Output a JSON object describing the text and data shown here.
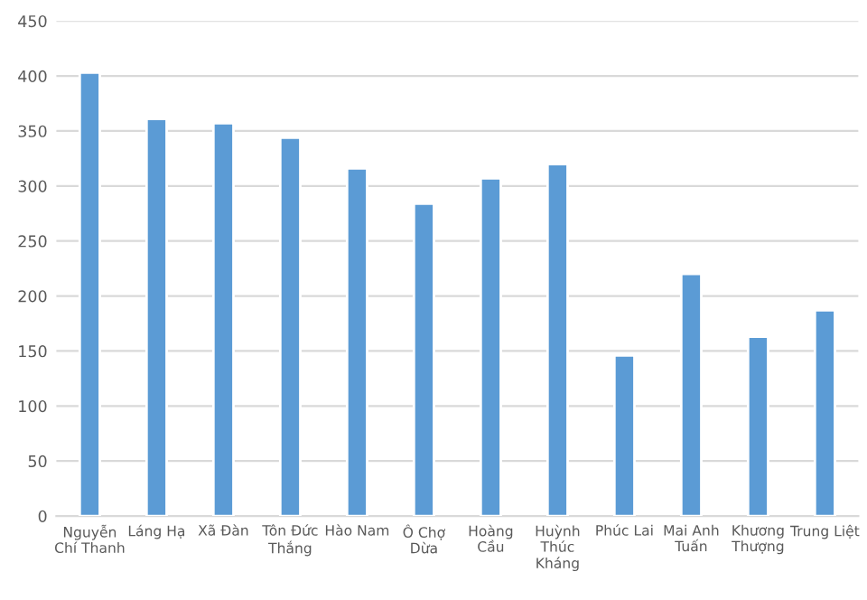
{
  "chart_data": {
    "type": "bar",
    "categories": [
      "Nguyễn\nChí Thanh",
      "Láng Hạ",
      "Xã Đàn",
      "Tôn Đức\nThắng",
      "Hào Nam",
      "Ô Chợ\nDừa",
      "Hoàng\nCầu",
      "Huỳnh\nThúc\nKháng",
      "Phúc Lai",
      "Mai Anh\nTuấn",
      "Khương\nThượng",
      "Trung Liệt"
    ],
    "values": [
      403,
      361,
      357,
      344,
      316,
      284,
      307,
      320,
      146,
      220,
      163,
      187
    ],
    "color": "#5b9bd5",
    "ylim": [
      0,
      450
    ],
    "yticks": [
      0,
      50,
      100,
      150,
      200,
      250,
      300,
      350,
      400,
      450
    ],
    "grid": "y"
  }
}
